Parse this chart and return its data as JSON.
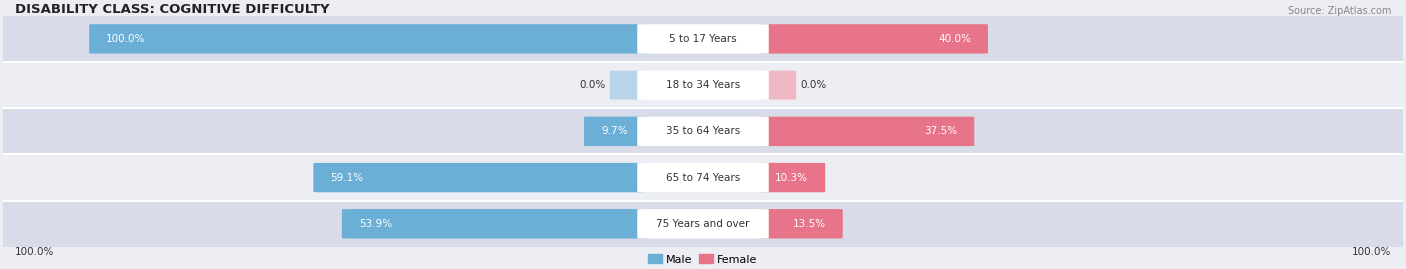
{
  "title": "DISABILITY CLASS: COGNITIVE DIFFICULTY",
  "source": "Source: ZipAtlas.com",
  "categories": [
    "5 to 17 Years",
    "18 to 34 Years",
    "35 to 64 Years",
    "65 to 74 Years",
    "75 Years and over"
  ],
  "male_values": [
    100.0,
    0.0,
    9.7,
    59.1,
    53.9
  ],
  "female_values": [
    40.0,
    0.0,
    37.5,
    10.3,
    13.5
  ],
  "male_color": "#6baed6",
  "female_color": "#e8748a",
  "male_color_light": "#b8d4ea",
  "female_color_light": "#f0b8c4",
  "max_val": 100.0,
  "title_fontsize": 9.5,
  "label_fontsize": 7.5,
  "axis_label_fontsize": 7.5,
  "legend_fontsize": 8,
  "bar_height": 0.62,
  "row_bg_colors": [
    "#dde0e8",
    "#eceef4"
  ],
  "row_bg_alt": "#f0f0f5",
  "title_color": "#222222",
  "source_color": "#888888",
  "text_color": "#333333",
  "center_label_bg": "#ffffff"
}
